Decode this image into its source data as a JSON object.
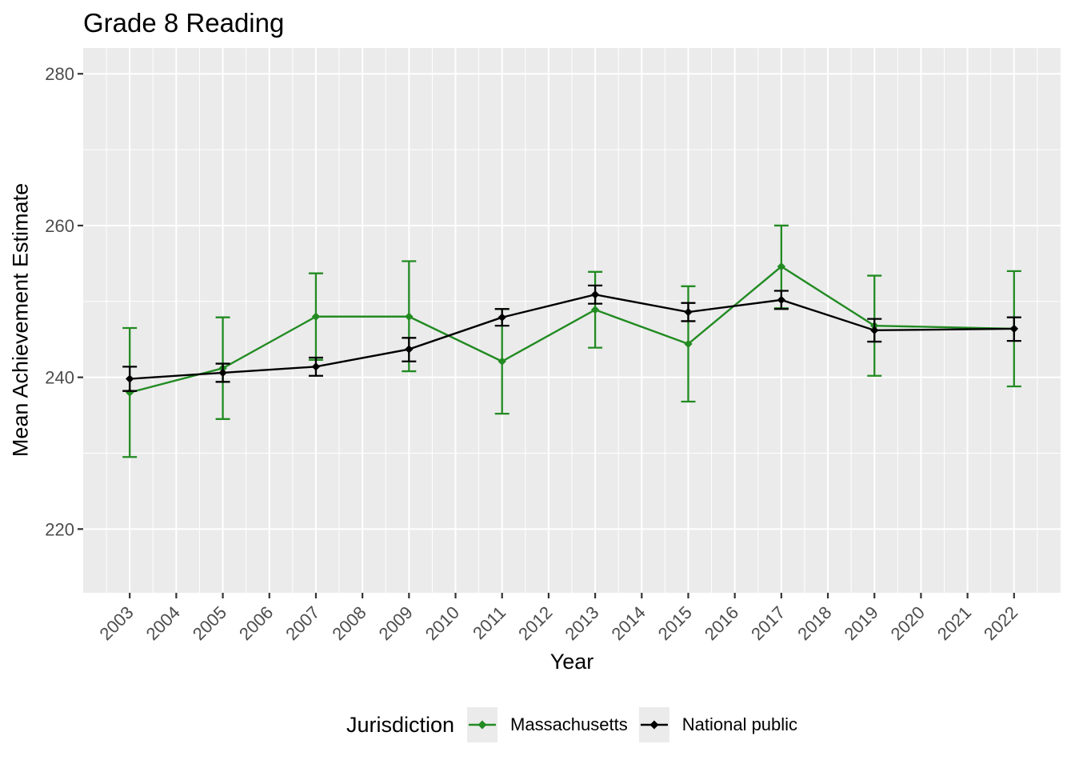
{
  "chart_data": {
    "type": "line",
    "title": "Grade 8 Reading",
    "xlabel": "Year",
    "ylabel": "Mean Achievement Estimate",
    "legend_title": "Jurisdiction",
    "legend_position": "bottom",
    "grid": true,
    "panel_bg": "#EBEBEB",
    "grid_color": "#FFFFFF",
    "tick_color": "#333333",
    "tick_label_color": "#4D4D4D",
    "xlim": [
      2002,
      2023
    ],
    "ylim": [
      211.6,
      283.4
    ],
    "x_ticks": [
      2003,
      2004,
      2005,
      2006,
      2007,
      2008,
      2009,
      2010,
      2011,
      2012,
      2013,
      2014,
      2015,
      2016,
      2017,
      2018,
      2019,
      2020,
      2021,
      2022
    ],
    "y_ticks": [
      220,
      240,
      260,
      280
    ],
    "x": [
      2003,
      2005,
      2007,
      2009,
      2011,
      2013,
      2015,
      2017,
      2019,
      2022
    ],
    "series": [
      {
        "name": "Massachusetts",
        "color": "#228B22",
        "values": [
          238.0,
          241.2,
          248.0,
          248.0,
          242.1,
          248.9,
          244.4,
          254.6,
          246.8,
          246.4
        ],
        "err_low": [
          229.5,
          234.5,
          242.3,
          240.8,
          235.2,
          243.9,
          236.8,
          249.1,
          240.2,
          238.8
        ],
        "err_high": [
          246.5,
          247.9,
          253.7,
          255.3,
          249.0,
          253.9,
          252.0,
          260.0,
          253.4,
          254.0
        ]
      },
      {
        "name": "National public",
        "color": "#000000",
        "values": [
          239.8,
          240.6,
          241.4,
          243.7,
          247.9,
          250.9,
          248.6,
          250.2,
          246.2,
          246.4
        ],
        "err_low": [
          238.2,
          239.4,
          240.2,
          242.1,
          246.8,
          249.7,
          247.4,
          249.0,
          244.7,
          244.8
        ],
        "err_high": [
          241.4,
          241.8,
          242.6,
          245.2,
          249.0,
          252.1,
          249.8,
          251.4,
          247.7,
          247.9
        ]
      }
    ]
  }
}
